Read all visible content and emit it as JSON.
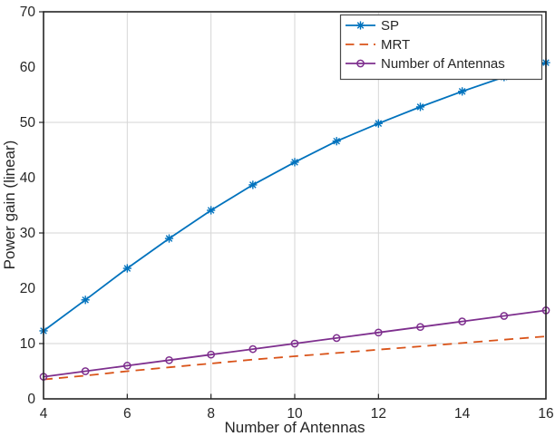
{
  "figure": {
    "background": "#ffffff"
  },
  "chart_data": {
    "type": "line",
    "title": "",
    "xlabel": "Number of Antennas",
    "ylabel": "Power gain (linear)",
    "xlim": [
      4,
      16
    ],
    "ylim": [
      0,
      70
    ],
    "x_tick_values": [
      4,
      6,
      8,
      10,
      12,
      14,
      16
    ],
    "x_tick_labels": [
      "4",
      "6",
      "8",
      "10",
      "12",
      "14",
      "16"
    ],
    "y_tick_values": [
      0,
      10,
      20,
      30,
      40,
      50,
      60,
      70
    ],
    "y_tick_labels": [
      "0",
      "10",
      "20",
      "30",
      "40",
      "50",
      "60",
      "70"
    ],
    "x_gridline_values": [
      6,
      8,
      10,
      12
    ],
    "y_gridline_values": [
      10,
      30,
      50
    ],
    "x_tick_mark_values": [
      6,
      8,
      10,
      12
    ],
    "y_tick_mark_values": [
      10,
      30,
      50,
      70
    ],
    "grid_on": true,
    "grid_color": "#d6d6d6",
    "axis_color": "#252525",
    "text_color": "#262626",
    "x": [
      4,
      5,
      6,
      7,
      8,
      9,
      10,
      11,
      12,
      13,
      14,
      15,
      16
    ],
    "series": [
      {
        "name": "SP",
        "color": "#0072BD",
        "line_style": "solid",
        "marker": "asterisk",
        "values": [
          12.3,
          17.9,
          23.6,
          29.0,
          34.1,
          38.7,
          42.8,
          46.6,
          49.8,
          52.8,
          55.6,
          58.2,
          60.8
        ]
      },
      {
        "name": "MRT",
        "color": "#D95319",
        "line_style": "dashed",
        "marker": "none",
        "values": [
          3.5,
          4.2,
          5.0,
          5.7,
          6.4,
          7.1,
          7.7,
          8.3,
          8.9,
          9.5,
          10.1,
          10.7,
          11.3
        ]
      },
      {
        "name": "Number of Antennas",
        "color": "#7E2F8E",
        "line_style": "solid",
        "marker": "circle",
        "values": [
          4,
          5,
          6,
          7,
          8,
          9,
          10,
          11,
          12,
          13,
          14,
          15,
          16
        ]
      }
    ],
    "legend": {
      "position": "top-right",
      "background": "#ffffff",
      "border_color": "#4a4a4a",
      "labels": [
        "SP",
        "MRT",
        "Number of Antennas"
      ]
    }
  }
}
